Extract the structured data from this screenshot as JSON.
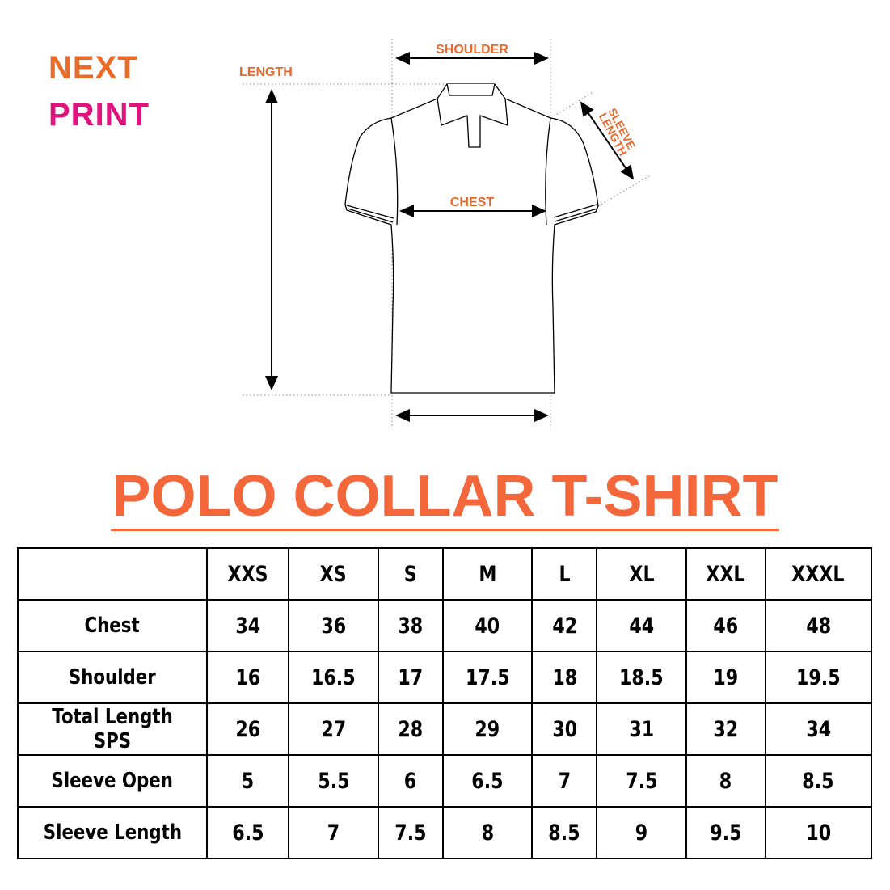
{
  "logo": {
    "line1": "NEXT",
    "line2": "PRINT",
    "colors": {
      "orange": "#ea6a27",
      "pink": "#e0127d"
    }
  },
  "diagram": {
    "labels": {
      "length": "LENGTH",
      "shoulder": "SHOULDER",
      "chest": "CHEST",
      "sleeve_length_1": "SLEEVE",
      "sleeve_length_2": "LENGTH"
    }
  },
  "title": "POLO COLLAR T-SHIRT",
  "accent_color": "#f4673a",
  "table": {
    "headers": [
      "",
      "XXS",
      "XS",
      "S",
      "M",
      "L",
      "XL",
      "XXL",
      "XXXL"
    ],
    "rows": [
      {
        "label": "Chest",
        "values": [
          "34",
          "36",
          "38",
          "40",
          "42",
          "44",
          "46",
          "48"
        ]
      },
      {
        "label": "Shoulder",
        "values": [
          "16",
          "16.5",
          "17",
          "17.5",
          "18",
          "18.5",
          "19",
          "19.5"
        ]
      },
      {
        "label": "Total Length SPS",
        "values": [
          "26",
          "27",
          "28",
          "29",
          "30",
          "31",
          "32",
          "34"
        ]
      },
      {
        "label": "Sleeve Open",
        "values": [
          "5",
          "5.5",
          "6",
          "6.5",
          "7",
          "7.5",
          "8",
          "8.5"
        ]
      },
      {
        "label": "Sleeve Length",
        "values": [
          "6.5",
          "7",
          "7.5",
          "8",
          "8.5",
          "9",
          "9.5",
          "10"
        ]
      }
    ]
  }
}
